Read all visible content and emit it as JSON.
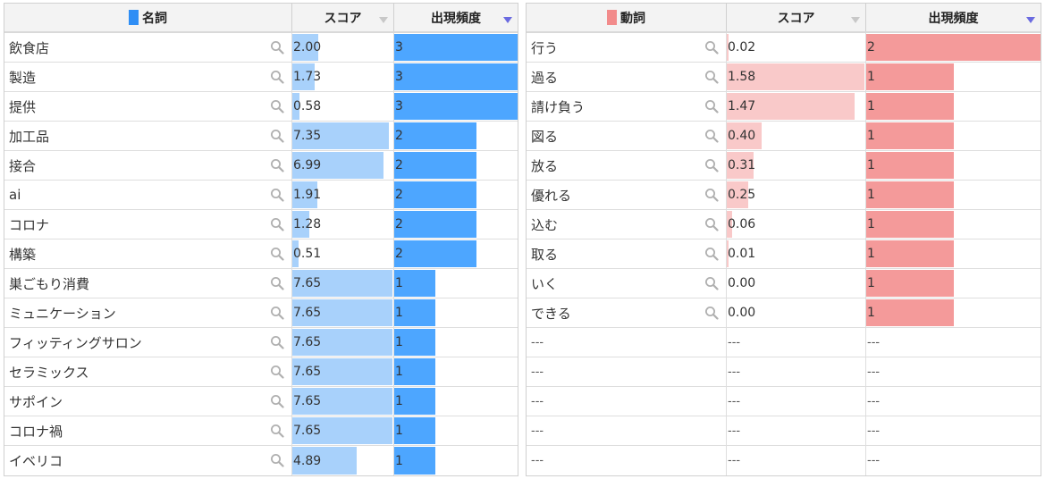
{
  "colors": {
    "noun_legend": "#2f8ef5",
    "noun_score_bar": "#a8d1fb",
    "noun_freq_bar": "#4da6ff",
    "verb_legend": "#f28b8b",
    "verb_score_bar": "#f9c9c9",
    "verb_freq_bar": "#f49a9a"
  },
  "tables": [
    {
      "id": "noun",
      "header": {
        "word": "名詞",
        "score": "スコア",
        "freq": "出現頻度"
      },
      "rows": [
        {
          "word": "飲食店",
          "score": "2.00",
          "freq": "3"
        },
        {
          "word": "製造",
          "score": "1.73",
          "freq": "3"
        },
        {
          "word": "提供",
          "score": "0.58",
          "freq": "3"
        },
        {
          "word": "加工品",
          "score": "7.35",
          "freq": "2"
        },
        {
          "word": "接合",
          "score": "6.99",
          "freq": "2"
        },
        {
          "word": "ai",
          "score": "1.91",
          "freq": "2"
        },
        {
          "word": "コロナ",
          "score": "1.28",
          "freq": "2"
        },
        {
          "word": "構築",
          "score": "0.51",
          "freq": "2"
        },
        {
          "word": "巣ごもり消費",
          "score": "7.65",
          "freq": "1"
        },
        {
          "word": "ミュニケーション",
          "score": "7.65",
          "freq": "1"
        },
        {
          "word": "フィッティングサロン",
          "score": "7.65",
          "freq": "1"
        },
        {
          "word": "セラミックス",
          "score": "7.65",
          "freq": "1"
        },
        {
          "word": "サポイン",
          "score": "7.65",
          "freq": "1"
        },
        {
          "word": "コロナ禍",
          "score": "7.65",
          "freq": "1"
        },
        {
          "word": "イベリコ",
          "score": "4.89",
          "freq": "1"
        }
      ]
    },
    {
      "id": "verb",
      "header": {
        "word": "動詞",
        "score": "スコア",
        "freq": "出現頻度"
      },
      "rows": [
        {
          "word": "行う",
          "score": "0.02",
          "freq": "2"
        },
        {
          "word": "過る",
          "score": "1.58",
          "freq": "1"
        },
        {
          "word": "請け負う",
          "score": "1.47",
          "freq": "1"
        },
        {
          "word": "図る",
          "score": "0.40",
          "freq": "1"
        },
        {
          "word": "放る",
          "score": "0.31",
          "freq": "1"
        },
        {
          "word": "優れる",
          "score": "0.25",
          "freq": "1"
        },
        {
          "word": "込む",
          "score": "0.06",
          "freq": "1"
        },
        {
          "word": "取る",
          "score": "0.01",
          "freq": "1"
        },
        {
          "word": "いく",
          "score": "0.00",
          "freq": "1"
        },
        {
          "word": "できる",
          "score": "0.00",
          "freq": "1"
        },
        {
          "word": "---",
          "score": "---",
          "freq": "---",
          "empty": true
        },
        {
          "word": "---",
          "score": "---",
          "freq": "---",
          "empty": true
        },
        {
          "word": "---",
          "score": "---",
          "freq": "---",
          "empty": true
        },
        {
          "word": "---",
          "score": "---",
          "freq": "---",
          "empty": true
        },
        {
          "word": "---",
          "score": "---",
          "freq": "---",
          "empty": true
        }
      ]
    }
  ]
}
